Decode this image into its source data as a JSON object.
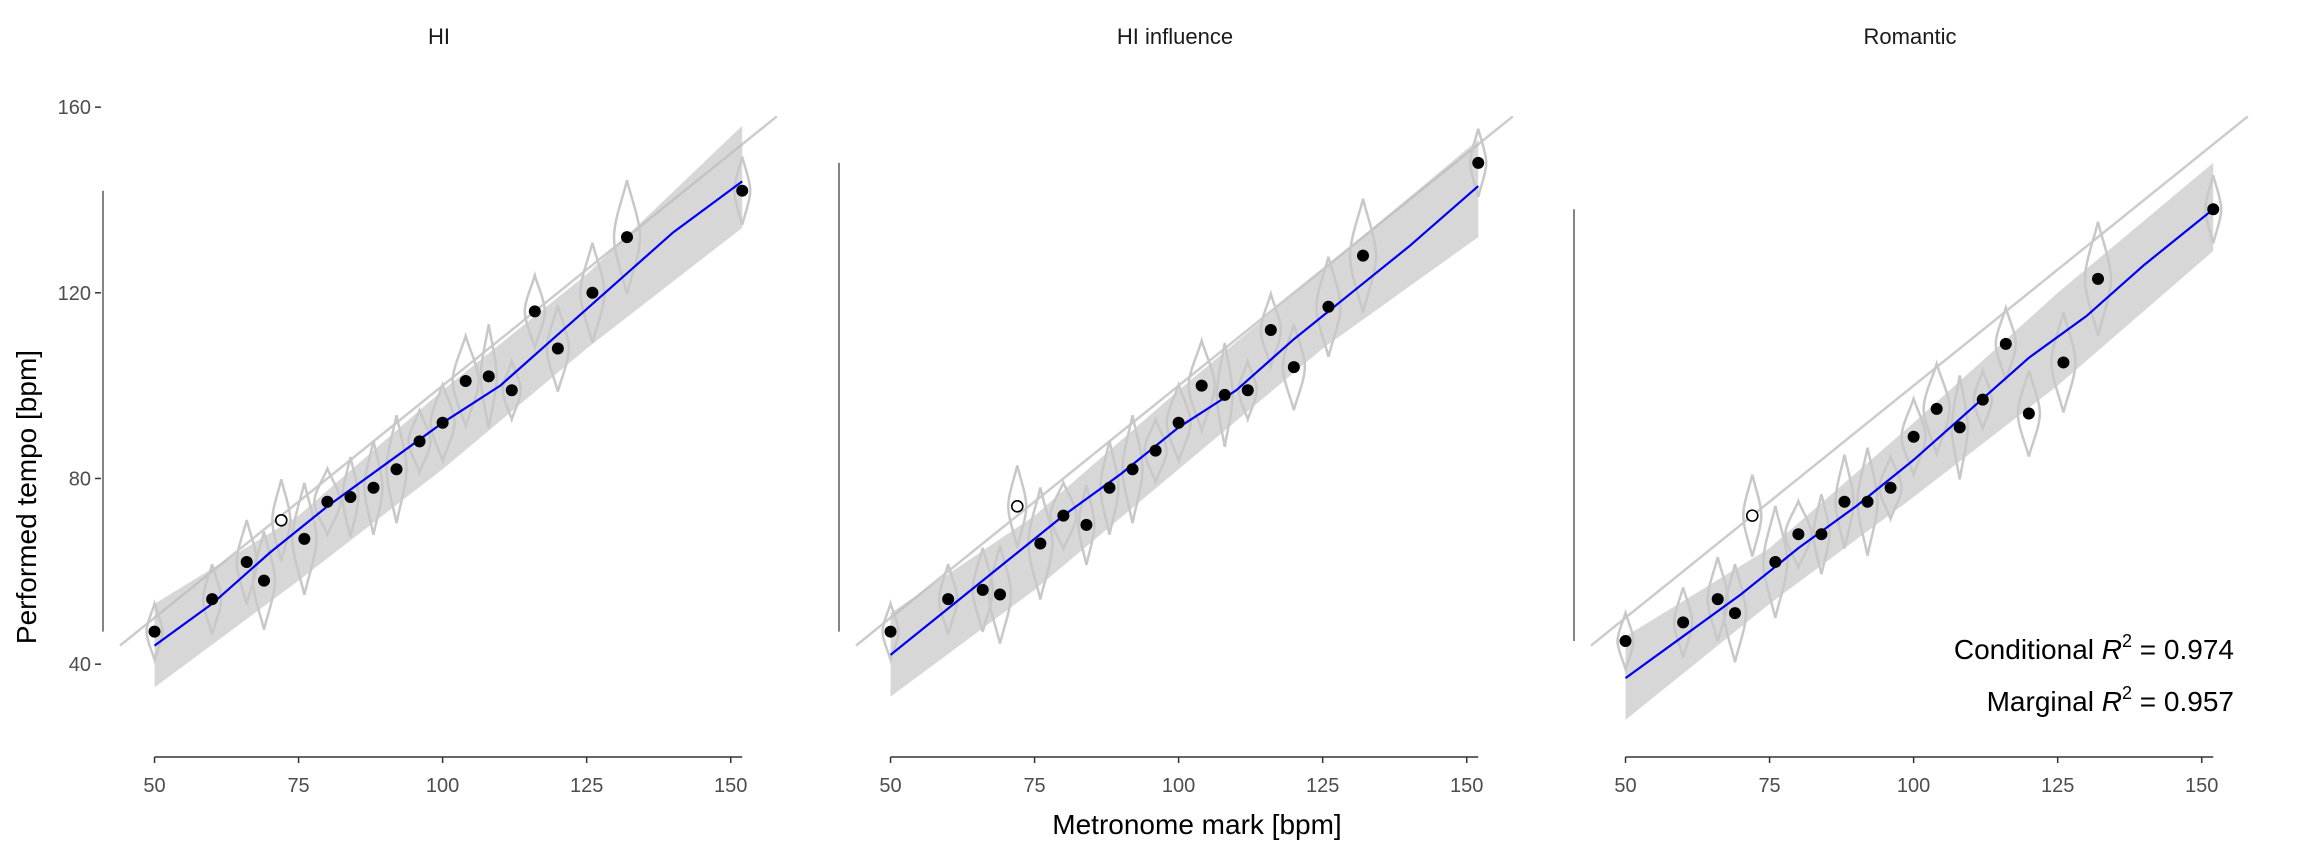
{
  "chart_data": {
    "type": "scatter",
    "xlabel": "Metronome mark [bpm]",
    "ylabel": "Performed tempo [bpm]",
    "xlim": [
      48,
      153
    ],
    "ylim": [
      20,
      168
    ],
    "x_ticks": [
      50,
      75,
      100,
      125,
      150
    ],
    "y_ticks": [
      40,
      80,
      120,
      160
    ],
    "grid": false,
    "identity_line": true,
    "colors": {
      "fit_line": "#0000ee",
      "ribbon": "#bdbdbd",
      "violin": "#c8c8c8",
      "identity": "#cccccc",
      "point": "#000000"
    },
    "panels": [
      {
        "title": "HI",
        "fit": [
          [
            50,
            44
          ],
          [
            60,
            53
          ],
          [
            70,
            64
          ],
          [
            80,
            74
          ],
          [
            90,
            83
          ],
          [
            100,
            92
          ],
          [
            110,
            100
          ],
          [
            120,
            111
          ],
          [
            130,
            122
          ],
          [
            140,
            133
          ],
          [
            152,
            144
          ]
        ],
        "ribbon_low": [
          [
            50,
            35
          ],
          [
            75,
            58
          ],
          [
            100,
            82
          ],
          [
            125,
            108
          ],
          [
            152,
            134
          ]
        ],
        "ribbon_high": [
          [
            50,
            53
          ],
          [
            75,
            72
          ],
          [
            100,
            99
          ],
          [
            125,
            124
          ],
          [
            152,
            156
          ]
        ],
        "points": [
          [
            50,
            47
          ],
          [
            60,
            54
          ],
          [
            66,
            62
          ],
          [
            69,
            58
          ],
          [
            76,
            67
          ],
          [
            80,
            75
          ],
          [
            84,
            76
          ],
          [
            88,
            78
          ],
          [
            92,
            82
          ],
          [
            96,
            88
          ],
          [
            100,
            92
          ],
          [
            104,
            101
          ],
          [
            108,
            102
          ],
          [
            112,
            99
          ],
          [
            116,
            116
          ],
          [
            120,
            108
          ],
          [
            126,
            120
          ],
          [
            132,
            132
          ],
          [
            152,
            142
          ]
        ],
        "open_points": [
          [
            72,
            71
          ]
        ],
        "annotation_lines": []
      },
      {
        "title": "HI influence",
        "fit": [
          [
            50,
            42
          ],
          [
            60,
            52
          ],
          [
            70,
            62
          ],
          [
            80,
            72
          ],
          [
            90,
            81
          ],
          [
            100,
            91
          ],
          [
            110,
            99
          ],
          [
            120,
            110
          ],
          [
            130,
            120
          ],
          [
            140,
            130
          ],
          [
            152,
            143
          ]
        ],
        "ribbon_low": [
          [
            50,
            33
          ],
          [
            75,
            56
          ],
          [
            100,
            82
          ],
          [
            125,
            108
          ],
          [
            152,
            132
          ]
        ],
        "ribbon_high": [
          [
            50,
            51
          ],
          [
            75,
            72
          ],
          [
            100,
            99
          ],
          [
            125,
            125
          ],
          [
            152,
            153
          ]
        ],
        "points": [
          [
            50,
            47
          ],
          [
            60,
            54
          ],
          [
            66,
            56
          ],
          [
            69,
            55
          ],
          [
            76,
            66
          ],
          [
            80,
            72
          ],
          [
            84,
            70
          ],
          [
            88,
            78
          ],
          [
            92,
            82
          ],
          [
            96,
            86
          ],
          [
            100,
            92
          ],
          [
            104,
            100
          ],
          [
            108,
            98
          ],
          [
            112,
            99
          ],
          [
            116,
            112
          ],
          [
            120,
            104
          ],
          [
            126,
            117
          ],
          [
            132,
            128
          ],
          [
            152,
            148
          ]
        ],
        "open_points": [
          [
            72,
            74
          ]
        ],
        "annotation_lines": []
      },
      {
        "title": "Romantic",
        "fit": [
          [
            50,
            37
          ],
          [
            60,
            46
          ],
          [
            70,
            55
          ],
          [
            80,
            65
          ],
          [
            90,
            74
          ],
          [
            100,
            84
          ],
          [
            110,
            95
          ],
          [
            120,
            106
          ],
          [
            130,
            115
          ],
          [
            140,
            126
          ],
          [
            152,
            138
          ]
        ],
        "ribbon_low": [
          [
            50,
            28
          ],
          [
            75,
            53
          ],
          [
            100,
            76
          ],
          [
            125,
            100
          ],
          [
            152,
            129
          ]
        ],
        "ribbon_high": [
          [
            50,
            46
          ],
          [
            75,
            65
          ],
          [
            100,
            92
          ],
          [
            125,
            120
          ],
          [
            152,
            148
          ]
        ],
        "points": [
          [
            50,
            45
          ],
          [
            60,
            49
          ],
          [
            66,
            54
          ],
          [
            69,
            51
          ],
          [
            76,
            62
          ],
          [
            80,
            68
          ],
          [
            84,
            68
          ],
          [
            88,
            75
          ],
          [
            92,
            75
          ],
          [
            96,
            78
          ],
          [
            100,
            89
          ],
          [
            104,
            95
          ],
          [
            108,
            91
          ],
          [
            112,
            97
          ],
          [
            116,
            109
          ],
          [
            120,
            94
          ],
          [
            126,
            105
          ],
          [
            132,
            123
          ],
          [
            152,
            138
          ]
        ],
        "open_points": [
          [
            72,
            72
          ]
        ],
        "annotation_lines": [
          {
            "prefix": "Conditional",
            "sym": "R",
            "sup": "2",
            "value": " = 0.974"
          },
          {
            "prefix": "Marginal",
            "sym": "R",
            "sup": "2",
            "value": " = 0.957"
          }
        ]
      }
    ]
  }
}
